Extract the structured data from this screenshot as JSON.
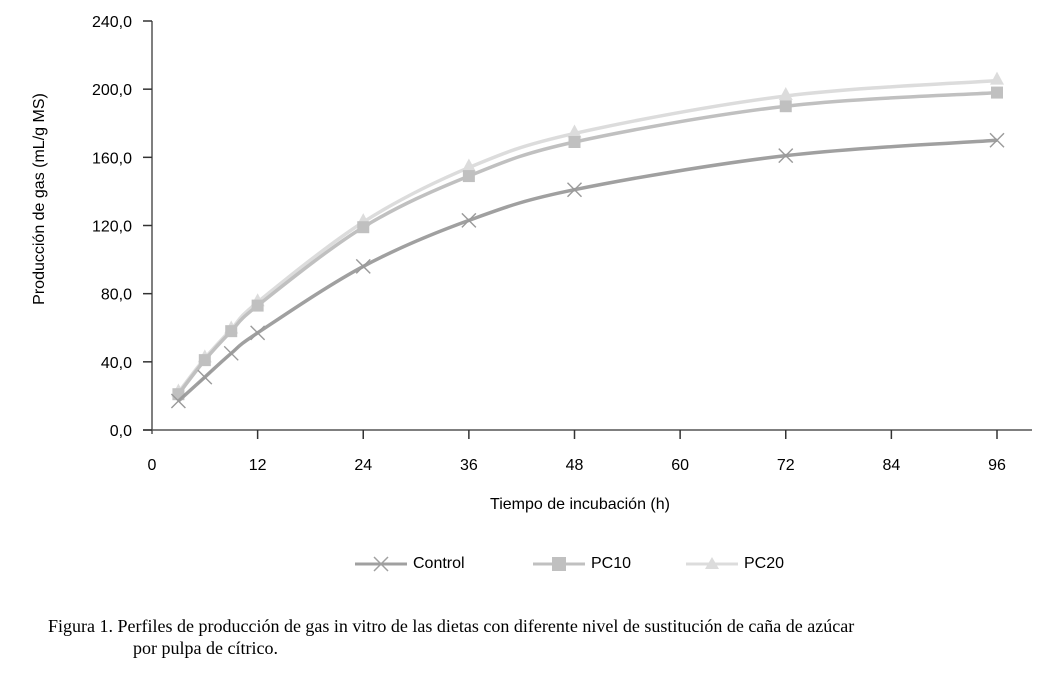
{
  "chart_data": {
    "type": "line",
    "title": "",
    "xlabel": "Tiempo de incubación (h)",
    "ylabel": "Producción de gas (mL/g MS)",
    "x": [
      3,
      6,
      9,
      12,
      24,
      36,
      48,
      72,
      96
    ],
    "xticks": [
      "0",
      "12",
      "24",
      "36",
      "48",
      "60",
      "72",
      "84",
      "96"
    ],
    "xlim": [
      0,
      100
    ],
    "yticks": [
      "0,0",
      "40,0",
      "80,0",
      "120,0",
      "160,0",
      "200,0",
      "240,0"
    ],
    "ylim": [
      0,
      240
    ],
    "grid": false,
    "legend_position": "bottom",
    "series": [
      {
        "name": "Control",
        "marker": "x",
        "color": "#a0a0a0",
        "values": [
          17,
          31,
          45,
          57,
          96,
          123,
          141,
          161,
          170
        ]
      },
      {
        "name": "PC10",
        "marker": "square",
        "color": "#c0c0c0",
        "values": [
          21,
          41,
          58,
          73,
          119,
          149,
          169,
          190,
          198
        ]
      },
      {
        "name": "PC20",
        "marker": "triangle",
        "color": "#dcdcdc",
        "values": [
          22,
          42,
          59,
          75,
          122,
          154,
          174,
          196,
          205
        ]
      }
    ]
  },
  "legend": {
    "control": "Control",
    "pc10": "PC10",
    "pc20": "PC20"
  },
  "caption": {
    "line1": "Figura 1. Perfiles de producción de gas in vitro de las dietas con diferente nivel de sustitución de caña de azúcar",
    "line2": "por pulpa de cítrico."
  }
}
